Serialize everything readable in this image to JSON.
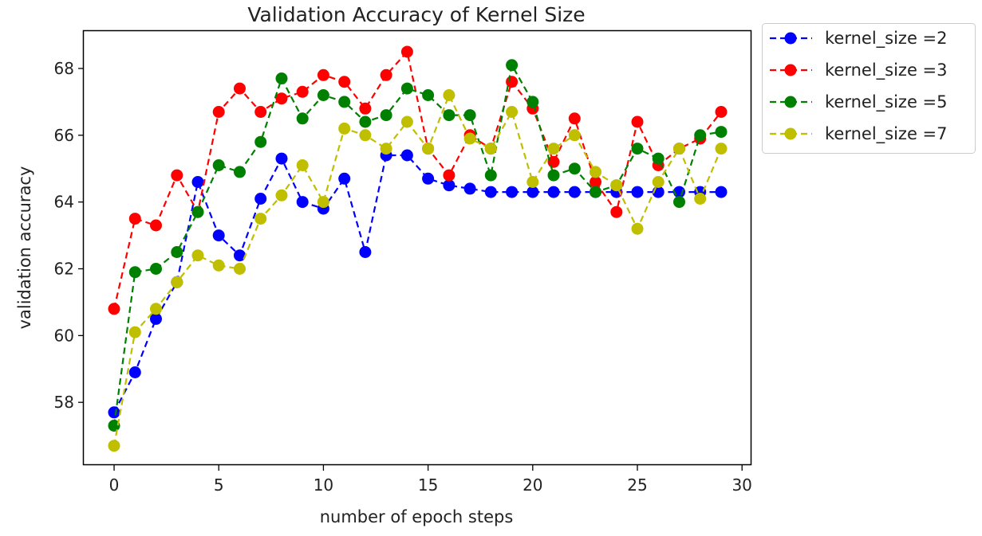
{
  "chart_data": {
    "type": "line",
    "title": "Validation Accuracy of Kernel Size",
    "xlabel": "number of epoch steps",
    "ylabel": "validation accuracy",
    "xlim": [
      -1.45,
      30.45
    ],
    "ylim": [
      56.12,
      69.12
    ],
    "xticks": [
      0,
      5,
      10,
      15,
      20,
      25,
      30
    ],
    "yticks": [
      58,
      60,
      62,
      64,
      66,
      68
    ],
    "grid": false,
    "legend_position": "outside-top-right",
    "x": [
      0,
      1,
      2,
      3,
      4,
      5,
      6,
      7,
      8,
      9,
      10,
      11,
      12,
      13,
      14,
      15,
      16,
      17,
      18,
      19,
      20,
      21,
      22,
      23,
      24,
      25,
      26,
      27,
      28,
      29
    ],
    "series": [
      {
        "name": "kernel_size =2",
        "color": "#0000ff",
        "values": [
          57.7,
          58.9,
          60.5,
          61.6,
          64.6,
          63.0,
          62.4,
          64.1,
          65.3,
          64.0,
          63.8,
          64.7,
          62.5,
          65.4,
          65.4,
          64.7,
          64.5,
          64.4,
          64.3,
          64.3,
          64.3,
          64.3,
          64.3,
          64.3,
          64.3,
          64.3,
          64.3,
          64.3,
          64.3,
          64.3
        ]
      },
      {
        "name": "kernel_size =3",
        "color": "#ff0000",
        "values": [
          60.8,
          63.5,
          63.3,
          64.8,
          63.7,
          66.7,
          67.4,
          66.7,
          67.1,
          67.3,
          67.8,
          67.6,
          66.8,
          67.8,
          68.5,
          65.6,
          64.8,
          66.0,
          65.6,
          67.6,
          66.8,
          65.2,
          66.5,
          64.6,
          63.7,
          66.4,
          65.1,
          65.6,
          65.9,
          66.7
        ]
      },
      {
        "name": "kernel_size =5",
        "color": "#008000",
        "values": [
          57.3,
          61.9,
          62.0,
          62.5,
          63.7,
          65.1,
          64.9,
          65.8,
          67.7,
          66.5,
          67.2,
          67.0,
          66.4,
          66.6,
          67.4,
          67.2,
          66.6,
          66.6,
          64.8,
          68.1,
          67.0,
          64.8,
          65.0,
          64.3,
          64.5,
          65.6,
          65.3,
          64.0,
          66.0,
          66.1
        ]
      },
      {
        "name": "kernel_size =7",
        "color": "#bfbf00",
        "values": [
          56.7,
          60.1,
          60.8,
          61.6,
          62.4,
          62.1,
          62.0,
          63.5,
          64.2,
          65.1,
          64.0,
          66.2,
          66.0,
          65.6,
          66.4,
          65.6,
          67.2,
          65.9,
          65.6,
          66.7,
          64.6,
          65.6,
          66.0,
          64.9,
          64.5,
          63.2,
          64.6,
          65.6,
          64.1,
          65.6
        ]
      }
    ]
  }
}
